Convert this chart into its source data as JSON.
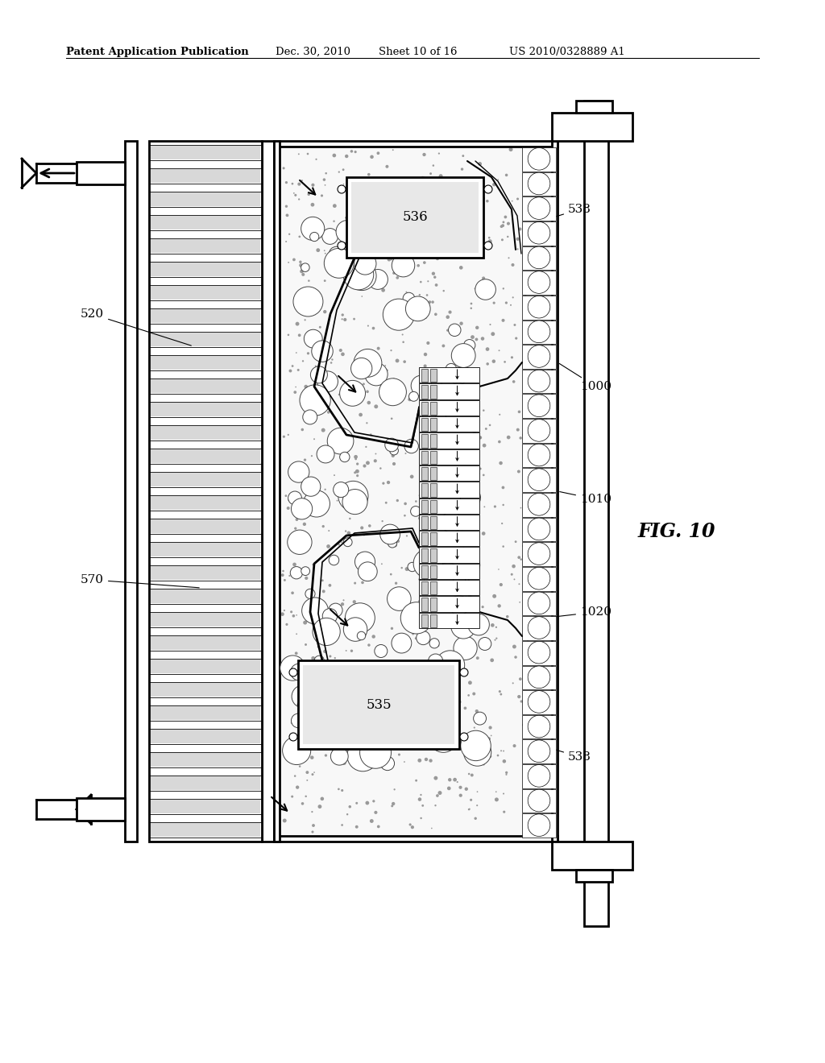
{
  "bg_color": "#ffffff",
  "line_color": "#000000",
  "header_text": "Patent Application Publication",
  "header_date": "Dec. 30, 2010",
  "header_sheet": "Sheet 10 of 16",
  "header_patent": "US 2010/0328889 A1",
  "fig_label": "FIG. 10",
  "lw_main": 2.0,
  "lw_thin": 1.0,
  "lw_thick": 3.0,
  "fin_fill": "#ffffff",
  "fluid_fill": "#f2f2f2",
  "stipple_color": "#888888",
  "bubble_edge": "#555555"
}
